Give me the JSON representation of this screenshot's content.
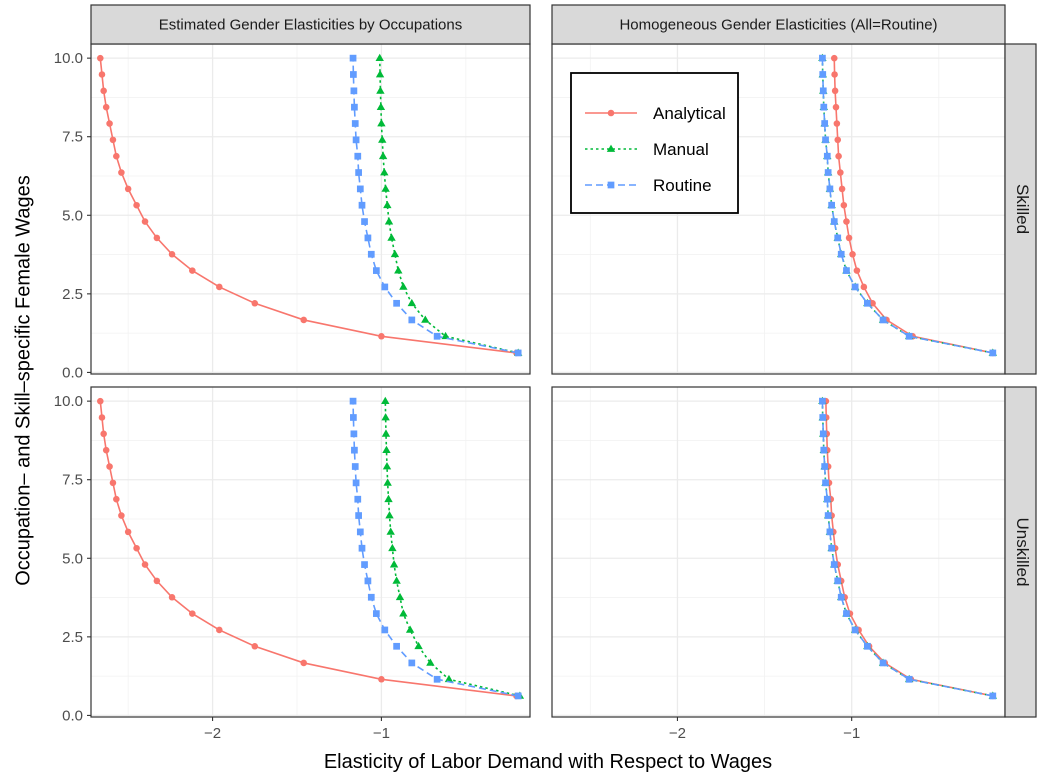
{
  "chart_data": {
    "type": "line",
    "xlabel": "Elasticity of Labor Demand with Respect to Wages",
    "ylabel": "Occupation– and Skill–specific Female Wages",
    "xlim": [
      -2.72,
      -0.12
    ],
    "ylim": [
      -0.05,
      10.45
    ],
    "x_ticks": [
      {
        "value": -2,
        "label": "−2"
      },
      {
        "value": -1,
        "label": "−1"
      }
    ],
    "y_ticks": [
      {
        "value": 0,
        "label": "0.0"
      },
      {
        "value": 2.5,
        "label": "2.5"
      },
      {
        "value": 5,
        "label": "5.0"
      },
      {
        "value": 7.5,
        "label": "7.5"
      },
      {
        "value": 10,
        "label": "10.0"
      }
    ],
    "grid": true,
    "legend_position": "top-left of the top-right panel",
    "column_strips": [
      "Estimated Gender Elasticities by Occupations",
      "Homogeneous Gender Elasticities (All=Routine)"
    ],
    "row_strips": [
      "Skilled",
      "Unskilled"
    ],
    "series_styles": [
      {
        "name": "Analytical",
        "color": "#f8766d",
        "marker": "circle",
        "dash": "solid"
      },
      {
        "name": "Manual",
        "color": "#00ba38",
        "marker": "triangle",
        "dash": "dotted"
      },
      {
        "name": "Routine",
        "color": "#619cff",
        "marker": "square",
        "dash": "dashed"
      }
    ],
    "y": [
      0.62,
      1.15,
      1.67,
      2.2,
      2.72,
      3.24,
      3.76,
      4.28,
      4.8,
      5.32,
      5.84,
      6.36,
      6.88,
      7.4,
      7.92,
      8.44,
      8.96,
      9.48,
      10.0
    ],
    "panels": [
      {
        "column": 0,
        "row": 0,
        "series": [
          {
            "name": "Analytical",
            "x": [
              -0.2,
              -1.0,
              -1.46,
              -1.75,
              -1.96,
              -2.12,
              -2.24,
              -2.33,
              -2.4,
              -2.45,
              -2.5,
              -2.54,
              -2.57,
              -2.59,
              -2.61,
              -2.63,
              -2.645,
              -2.655,
              -2.665
            ]
          },
          {
            "name": "Manual",
            "x": [
              -0.19,
              -0.62,
              -0.74,
              -0.82,
              -0.87,
              -0.9,
              -0.92,
              -0.94,
              -0.955,
              -0.965,
              -0.975,
              -0.983,
              -0.99,
              -0.995,
              -1.0,
              -1.003,
              -1.006,
              -1.008,
              -1.01
            ]
          },
          {
            "name": "Routine",
            "x": [
              -0.19,
              -0.67,
              -0.82,
              -0.91,
              -0.98,
              -1.03,
              -1.06,
              -1.08,
              -1.1,
              -1.115,
              -1.125,
              -1.135,
              -1.14,
              -1.15,
              -1.155,
              -1.16,
              -1.163,
              -1.166,
              -1.168
            ]
          }
        ]
      },
      {
        "column": 1,
        "row": 0,
        "series": [
          {
            "name": "Analytical",
            "x": [
              -0.19,
              -0.65,
              -0.8,
              -0.88,
              -0.93,
              -0.97,
              -0.995,
              -1.015,
              -1.03,
              -1.045,
              -1.055,
              -1.065,
              -1.075,
              -1.08,
              -1.085,
              -1.09,
              -1.095,
              -1.098,
              -1.1
            ]
          },
          {
            "name": "Manual",
            "x": [
              -0.19,
              -0.67,
              -0.82,
              -0.91,
              -0.98,
              -1.03,
              -1.06,
              -1.08,
              -1.1,
              -1.115,
              -1.125,
              -1.135,
              -1.14,
              -1.15,
              -1.155,
              -1.16,
              -1.163,
              -1.166,
              -1.168
            ]
          },
          {
            "name": "Routine",
            "x": [
              -0.19,
              -0.67,
              -0.82,
              -0.91,
              -0.98,
              -1.03,
              -1.06,
              -1.08,
              -1.1,
              -1.115,
              -1.125,
              -1.135,
              -1.14,
              -1.15,
              -1.155,
              -1.16,
              -1.163,
              -1.166,
              -1.168
            ]
          }
        ]
      },
      {
        "column": 0,
        "row": 1,
        "series": [
          {
            "name": "Analytical",
            "x": [
              -0.2,
              -1.0,
              -1.46,
              -1.75,
              -1.96,
              -2.12,
              -2.24,
              -2.33,
              -2.4,
              -2.45,
              -2.5,
              -2.54,
              -2.57,
              -2.59,
              -2.61,
              -2.63,
              -2.645,
              -2.655,
              -2.665
            ]
          },
          {
            "name": "Manual",
            "x": [
              -0.18,
              -0.6,
              -0.71,
              -0.78,
              -0.83,
              -0.87,
              -0.89,
              -0.91,
              -0.925,
              -0.935,
              -0.945,
              -0.952,
              -0.958,
              -0.963,
              -0.967,
              -0.97,
              -0.973,
              -0.975,
              -0.977
            ]
          },
          {
            "name": "Routine",
            "x": [
              -0.19,
              -0.67,
              -0.82,
              -0.91,
              -0.98,
              -1.03,
              -1.06,
              -1.08,
              -1.1,
              -1.115,
              -1.125,
              -1.135,
              -1.14,
              -1.15,
              -1.155,
              -1.16,
              -1.163,
              -1.166,
              -1.168
            ]
          }
        ]
      },
      {
        "column": 1,
        "row": 1,
        "series": [
          {
            "name": "Analytical",
            "x": [
              -0.19,
              -0.66,
              -0.81,
              -0.9,
              -0.96,
              -1.01,
              -1.04,
              -1.06,
              -1.08,
              -1.095,
              -1.105,
              -1.115,
              -1.12,
              -1.13,
              -1.135,
              -1.14,
              -1.143,
              -1.146,
              -1.148
            ]
          },
          {
            "name": "Manual",
            "x": [
              -0.19,
              -0.67,
              -0.82,
              -0.91,
              -0.98,
              -1.03,
              -1.06,
              -1.08,
              -1.1,
              -1.115,
              -1.125,
              -1.135,
              -1.14,
              -1.15,
              -1.155,
              -1.16,
              -1.163,
              -1.166,
              -1.168
            ]
          },
          {
            "name": "Routine",
            "x": [
              -0.19,
              -0.67,
              -0.82,
              -0.91,
              -0.98,
              -1.03,
              -1.06,
              -1.08,
              -1.1,
              -1.115,
              -1.125,
              -1.135,
              -1.14,
              -1.15,
              -1.155,
              -1.16,
              -1.163,
              -1.166,
              -1.168
            ]
          }
        ]
      }
    ]
  }
}
